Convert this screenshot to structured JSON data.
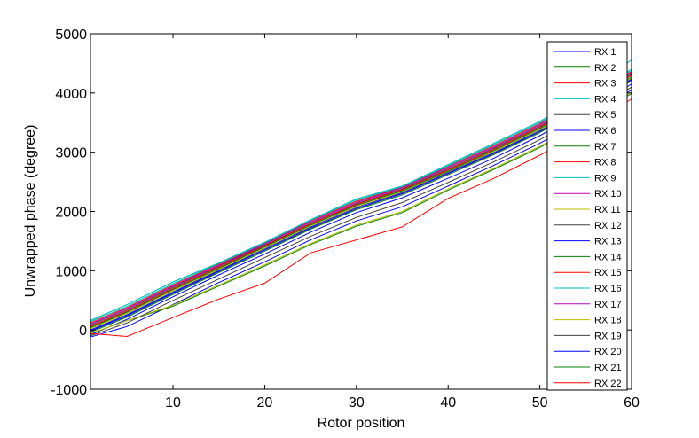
{
  "chart_data": {
    "type": "line",
    "title": "",
    "xlabel": "Rotor position",
    "ylabel": "Unwrapped phase (degree)",
    "xlim": [
      1,
      60
    ],
    "ylim": [
      -1000,
      5000
    ],
    "x_ticks": [
      10,
      20,
      30,
      40,
      50,
      60
    ],
    "x_tick_labels": [
      "10",
      "20",
      "30",
      "40",
      "50",
      "60"
    ],
    "y_ticks": [
      -1000,
      0,
      1000,
      2000,
      3000,
      4000,
      5000
    ],
    "y_tick_labels": [
      "-1000",
      "0",
      "1000",
      "2000",
      "3000",
      "4000",
      "5000"
    ],
    "grid": false,
    "legend_position": "top-right, overlapping plot",
    "x": [
      1,
      5,
      10,
      15,
      20,
      25,
      30,
      35,
      40,
      45,
      50,
      55,
      60
    ],
    "series": [
      {
        "name": "RX 1",
        "color": "#0000ff",
        "values": [
          -80,
          180,
          560,
          930,
          1280,
          1650,
          1980,
          2230,
          2560,
          2900,
          3280,
          3700,
          4150
        ]
      },
      {
        "name": "RX 2",
        "color": "#008000",
        "values": [
          -40,
          220,
          600,
          970,
          1330,
          1700,
          2030,
          2280,
          2620,
          2960,
          3330,
          3760,
          4200
        ]
      },
      {
        "name": "RX 3",
        "color": "#ff0000",
        "values": [
          60,
          320,
          700,
          1060,
          1420,
          1790,
          2120,
          2370,
          2700,
          3050,
          3420,
          3850,
          4300
        ]
      },
      {
        "name": "RX 4",
        "color": "#00bfbf",
        "values": [
          160,
          430,
          810,
          1130,
          1480,
          1860,
          2210,
          2430,
          2790,
          3150,
          3520,
          3970,
          4400
        ]
      },
      {
        "name": "RX 5",
        "color": "#404040",
        "values": [
          -20,
          240,
          620,
          990,
          1350,
          1720,
          2050,
          2300,
          2640,
          2980,
          3350,
          3780,
          4220
        ]
      },
      {
        "name": "RX 6",
        "color": "#0000ff",
        "values": [
          0,
          260,
          640,
          1010,
          1370,
          1740,
          2070,
          2320,
          2660,
          3000,
          3370,
          3800,
          4240
        ]
      },
      {
        "name": "RX 7",
        "color": "#008000",
        "values": [
          40,
          300,
          680,
          1040,
          1400,
          1770,
          2100,
          2350,
          2680,
          3030,
          3400,
          3830,
          4270
        ]
      },
      {
        "name": "RX 8",
        "color": "#ff0000",
        "values": [
          120,
          380,
          760,
          1110,
          1460,
          1840,
          2170,
          2410,
          2760,
          3110,
          3480,
          3920,
          4360
        ]
      },
      {
        "name": "RX 9",
        "color": "#00bfbf",
        "values": [
          140,
          400,
          780,
          1120,
          1470,
          1850,
          2190,
          2420,
          2770,
          3130,
          3500,
          3940,
          4380
        ]
      },
      {
        "name": "RX 10",
        "color": "#bf00bf",
        "values": [
          100,
          360,
          740,
          1090,
          1450,
          1820,
          2150,
          2400,
          2740,
          3090,
          3460,
          3900,
          4340
        ]
      },
      {
        "name": "RX 11",
        "color": "#bfbf00",
        "values": [
          20,
          280,
          660,
          1020,
          1380,
          1750,
          2080,
          2330,
          2670,
          3010,
          3380,
          3810,
          4250
        ]
      },
      {
        "name": "RX 12",
        "color": "#404040",
        "values": [
          80,
          340,
          720,
          1080,
          1430,
          1800,
          2130,
          2380,
          2720,
          3070,
          3440,
          3870,
          4320
        ]
      },
      {
        "name": "RX 13",
        "color": "#0000ff",
        "values": [
          -120,
          60,
          430,
          800,
          1150,
          1520,
          1840,
          2080,
          2430,
          2780,
          3150,
          3580,
          4050
        ]
      },
      {
        "name": "RX 14",
        "color": "#008000",
        "values": [
          -60,
          160,
          400,
          740,
          1080,
          1440,
          1750,
          1980,
          2360,
          2710,
          3080,
          3520,
          3990
        ]
      },
      {
        "name": "RX 15",
        "color": "#ff0000",
        "values": [
          60,
          320,
          700,
          1060,
          1420,
          1790,
          2120,
          2370,
          2700,
          3050,
          3420,
          3850,
          4300
        ]
      },
      {
        "name": "RX 16",
        "color": "#00bfbf",
        "values": [
          160,
          430,
          810,
          1130,
          1480,
          1860,
          2210,
          2430,
          2790,
          3150,
          3520,
          3970,
          4560
        ]
      },
      {
        "name": "RX 17",
        "color": "#bf00bf",
        "values": [
          100,
          360,
          740,
          1090,
          1450,
          1820,
          2150,
          2400,
          2740,
          3090,
          3460,
          3900,
          4340
        ]
      },
      {
        "name": "RX 18",
        "color": "#bfbf00",
        "values": [
          -60,
          160,
          420,
          760,
          1100,
          1460,
          1770,
          2000,
          2380,
          2730,
          3100,
          3540,
          4010
        ]
      },
      {
        "name": "RX 19",
        "color": "#404040",
        "values": [
          -100,
          120,
          500,
          860,
          1220,
          1580,
          1900,
          2150,
          2490,
          2840,
          3210,
          3640,
          4100
        ]
      },
      {
        "name": "RX 20",
        "color": "#0000ff",
        "values": [
          -20,
          240,
          620,
          990,
          1350,
          1720,
          2050,
          2300,
          2640,
          2980,
          3350,
          3780,
          4220
        ]
      },
      {
        "name": "RX 21",
        "color": "#008000",
        "values": [
          40,
          300,
          680,
          1040,
          1400,
          1770,
          2100,
          2350,
          2680,
          3030,
          3400,
          3830,
          4270
        ]
      },
      {
        "name": "RX 22",
        "color": "#ff0000",
        "values": [
          -60,
          -110,
          210,
          520,
          790,
          1300,
          1520,
          1740,
          2220,
          2560,
          2950,
          3380,
          3900
        ]
      }
    ]
  }
}
